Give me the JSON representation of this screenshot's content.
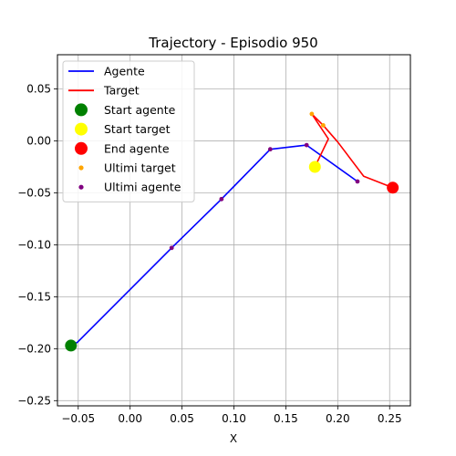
{
  "chart_data": {
    "type": "line",
    "title": "Trajectory - Episodio 950",
    "xlabel": "X",
    "ylabel": "",
    "xlim": [
      -0.07,
      0.27
    ],
    "ylim": [
      -0.255,
      0.083
    ],
    "x_ticks": [
      -0.05,
      0.0,
      0.05,
      0.1,
      0.15,
      0.2,
      0.25
    ],
    "x_tick_labels": [
      "−0.05",
      "0.00",
      "0.05",
      "0.10",
      "0.15",
      "0.20",
      "0.25"
    ],
    "y_ticks": [
      -0.25,
      -0.2,
      -0.15,
      -0.1,
      -0.05,
      0.0,
      0.05
    ],
    "y_tick_labels": [
      "−0.25",
      "−0.20",
      "−0.15",
      "−0.10",
      "−0.05",
      "0.00",
      "0.05"
    ],
    "grid": true,
    "legend_position": "upper-left",
    "series": [
      {
        "name": "Agente",
        "kind": "line",
        "color": "#0000ff",
        "x": [
          -0.057,
          -0.051,
          0.04,
          0.088,
          0.135,
          0.17,
          0.219
        ],
        "y": [
          -0.197,
          -0.194,
          -0.103,
          -0.056,
          -0.008,
          -0.004,
          -0.039
        ]
      },
      {
        "name": "Target",
        "kind": "line",
        "color": "#ff0000",
        "x": [
          0.178,
          0.191,
          0.175,
          0.186,
          0.2,
          0.225,
          0.253
        ],
        "y": [
          -0.025,
          0.002,
          0.026,
          0.015,
          -0.001,
          -0.034,
          -0.045
        ]
      },
      {
        "name": "Start agente",
        "kind": "scatter",
        "color": "#008000",
        "x": [
          -0.057
        ],
        "y": [
          -0.197
        ]
      },
      {
        "name": "Start target",
        "kind": "scatter",
        "color": "#ffff00",
        "x": [
          0.178
        ],
        "y": [
          -0.025
        ]
      },
      {
        "name": "End agente",
        "kind": "scatter",
        "color": "#ff0000",
        "x": [
          0.253
        ],
        "y": [
          -0.045
        ]
      },
      {
        "name": "Ultimi target",
        "kind": "scatter",
        "color": "#ffa500",
        "x": [
          0.175,
          0.186
        ],
        "y": [
          0.026,
          0.015
        ]
      },
      {
        "name": "Ultimi agente",
        "kind": "scatter",
        "color": "#800080",
        "x": [
          0.04,
          0.088,
          0.135,
          0.17,
          0.219
        ],
        "y": [
          -0.103,
          -0.056,
          -0.008,
          -0.004,
          -0.039
        ]
      }
    ],
    "legend": [
      {
        "label": "Agente",
        "marker": "line",
        "color": "#0000ff"
      },
      {
        "label": "Target",
        "marker": "line",
        "color": "#ff0000"
      },
      {
        "label": "Start agente",
        "marker": "big-dot",
        "color": "#008000"
      },
      {
        "label": "Start target",
        "marker": "big-dot",
        "color": "#ffff00"
      },
      {
        "label": "End agente",
        "marker": "big-dot",
        "color": "#ff0000"
      },
      {
        "label": "Ultimi target",
        "marker": "small-dot",
        "color": "#ffa500"
      },
      {
        "label": "Ultimi agente",
        "marker": "small-dot",
        "color": "#800080"
      }
    ]
  }
}
